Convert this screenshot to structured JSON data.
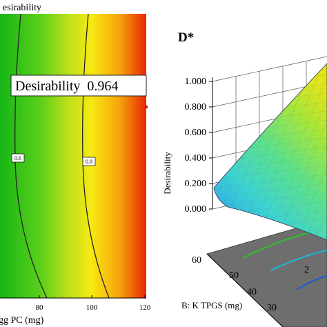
{
  "left_panel": {
    "title_fragment": "esirability",
    "xlabel_fragment": "gg PC (mg)",
    "xticks": [
      "80",
      "100",
      "120"
    ],
    "contour_labels": [
      "0.6",
      "0.8"
    ],
    "annotation": "Desirability  0.964"
  },
  "right_panel": {
    "panel_label": "D*",
    "zlabel": "Desirability",
    "zticks": [
      "1.000",
      "0.800",
      "0.600",
      "0.400",
      "0.200",
      "0.000"
    ],
    "ylabel": "B: K TPGS (mg)",
    "yticks": [
      "60",
      "50",
      "40",
      "30"
    ],
    "xtick_fragment": "2"
  },
  "chart_data": [
    {
      "type": "heatmap",
      "xlabel": "gg PC (mg)",
      "x_ticks": [
        80,
        100,
        120
      ],
      "colormap": [
        "green",
        "yellow",
        "orange",
        "red"
      ],
      "contour_levels": [
        0.6,
        0.8
      ],
      "annotation": {
        "label": "Desirability",
        "value": 0.964
      }
    },
    {
      "type": "surface",
      "title": "D*",
      "zlabel": "Desirability",
      "zlim": [
        0,
        1
      ],
      "z_ticks": [
        1.0,
        0.8,
        0.6,
        0.4,
        0.2,
        0.0
      ],
      "ylabel": "B: K TPGS (mg)",
      "y_ticks": [
        60,
        50,
        40,
        30
      ],
      "colormap": [
        "blue",
        "cyan",
        "green",
        "yellow"
      ]
    }
  ]
}
